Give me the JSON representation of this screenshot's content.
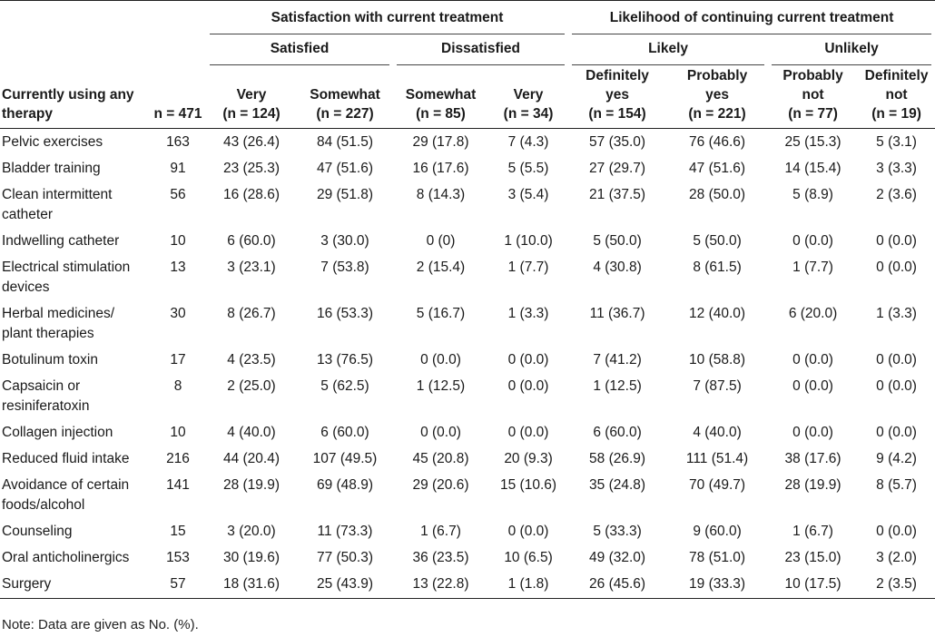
{
  "groups": {
    "satisfaction": "Satisfaction with current treatment",
    "likelihood": "Likelihood of continuing current treatment"
  },
  "subgroups": {
    "satisfied": "Satisfied",
    "dissatisfied": "Dissatisfied",
    "likely": "Likely",
    "unlikely": "Unlikely"
  },
  "columns": {
    "therapy": [
      "Currently using any",
      "therapy"
    ],
    "n": "n = 471",
    "very_sat": [
      "Very",
      "(n = 124)"
    ],
    "somewhat_sat": [
      "Somewhat",
      "(n = 227)"
    ],
    "somewhat_dis": [
      "Somewhat",
      "(n = 85)"
    ],
    "very_dis": [
      "Very",
      "(n = 34)"
    ],
    "def_yes": [
      "Definitely",
      "yes",
      "(n = 154)"
    ],
    "prob_yes": [
      "Probably",
      "yes",
      "(n = 221)"
    ],
    "prob_not": [
      "Probably",
      "not",
      "(n = 77)"
    ],
    "def_not": [
      "Definitely",
      "not",
      "(n = 19)"
    ]
  },
  "rows": [
    {
      "name": [
        "Pelvic exercises"
      ],
      "n": "163",
      "v": [
        "43 (26.4)",
        "84 (51.5)",
        "29 (17.8)",
        "7 (4.3)",
        "57 (35.0)",
        "76 (46.6)",
        "25 (15.3)",
        "5 (3.1)"
      ]
    },
    {
      "name": [
        "Bladder training"
      ],
      "n": "91",
      "v": [
        "23 (25.3)",
        "47 (51.6)",
        "16 (17.6)",
        "5 (5.5)",
        "27 (29.7)",
        "47 (51.6)",
        "14 (15.4)",
        "3 (3.3)"
      ]
    },
    {
      "name": [
        "Clean intermittent",
        "catheter"
      ],
      "n": "56",
      "v": [
        "16 (28.6)",
        "29 (51.8)",
        "8 (14.3)",
        "3 (5.4)",
        "21 (37.5)",
        "28 (50.0)",
        "5 (8.9)",
        "2 (3.6)"
      ]
    },
    {
      "name": [
        "Indwelling catheter"
      ],
      "n": "10",
      "v": [
        "6 (60.0)",
        "3 (30.0)",
        "0 (0)",
        "1 (10.0)",
        "5 (50.0)",
        "5 (50.0)",
        "0 (0.0)",
        "0 (0.0)"
      ]
    },
    {
      "name": [
        "Electrical stimulation",
        "devices"
      ],
      "n": "13",
      "v": [
        "3 (23.1)",
        "7 (53.8)",
        "2 (15.4)",
        "1 (7.7)",
        "4 (30.8)",
        "8 (61.5)",
        "1 (7.7)",
        "0 (0.0)"
      ]
    },
    {
      "name": [
        "Herbal medicines/",
        "plant therapies"
      ],
      "n": "30",
      "v": [
        "8 (26.7)",
        "16 (53.3)",
        "5 (16.7)",
        "1 (3.3)",
        "11 (36.7)",
        "12 (40.0)",
        "6 (20.0)",
        "1 (3.3)"
      ]
    },
    {
      "name": [
        "Botulinum toxin"
      ],
      "n": "17",
      "v": [
        "4 (23.5)",
        "13 (76.5)",
        "0 (0.0)",
        "0 (0.0)",
        "7 (41.2)",
        "10 (58.8)",
        "0 (0.0)",
        "0 (0.0)"
      ]
    },
    {
      "name": [
        "Capsaicin or",
        "resiniferatoxin"
      ],
      "n": "8",
      "v": [
        "2 (25.0)",
        "5 (62.5)",
        "1 (12.5)",
        "0 (0.0)",
        "1 (12.5)",
        "7 (87.5)",
        "0 (0.0)",
        "0 (0.0)"
      ]
    },
    {
      "name": [
        "Collagen injection"
      ],
      "n": "10",
      "v": [
        "4 (40.0)",
        "6 (60.0)",
        "0 (0.0)",
        "0 (0.0)",
        "6 (60.0)",
        "4 (40.0)",
        "0 (0.0)",
        "0 (0.0)"
      ]
    },
    {
      "name": [
        "Reduced fluid intake"
      ],
      "n": "216",
      "v": [
        "44 (20.4)",
        "107 (49.5)",
        "45 (20.8)",
        "20 (9.3)",
        "58 (26.9)",
        "111 (51.4)",
        "38 (17.6)",
        "9 (4.2)"
      ]
    },
    {
      "name": [
        "Avoidance of certain",
        "foods/alcohol"
      ],
      "n": "141",
      "v": [
        "28 (19.9)",
        "69 (48.9)",
        "29 (20.6)",
        "15 (10.6)",
        "35 (24.8)",
        "70 (49.7)",
        "28 (19.9)",
        "8 (5.7)"
      ]
    },
    {
      "name": [
        "Counseling"
      ],
      "n": "15",
      "v": [
        "3 (20.0)",
        "11 (73.3)",
        "1 (6.7)",
        "0 (0.0)",
        "5 (33.3)",
        "9 (60.0)",
        "1 (6.7)",
        "0 (0.0)"
      ]
    },
    {
      "name": [
        "Oral anticholinergics"
      ],
      "n": "153",
      "v": [
        "30 (19.6)",
        "77 (50.3)",
        "36 (23.5)",
        "10 (6.5)",
        "49 (32.0)",
        "78 (51.0)",
        "23 (15.0)",
        "3 (2.0)"
      ]
    },
    {
      "name": [
        "Surgery"
      ],
      "n": "57",
      "v": [
        "18 (31.6)",
        "25 (43.9)",
        "13 (22.8)",
        "1 (1.8)",
        "26 (45.6)",
        "19 (33.3)",
        "10 (17.5)",
        "2 (3.5)"
      ]
    }
  ],
  "note": "Note: Data are given as No. (%)."
}
